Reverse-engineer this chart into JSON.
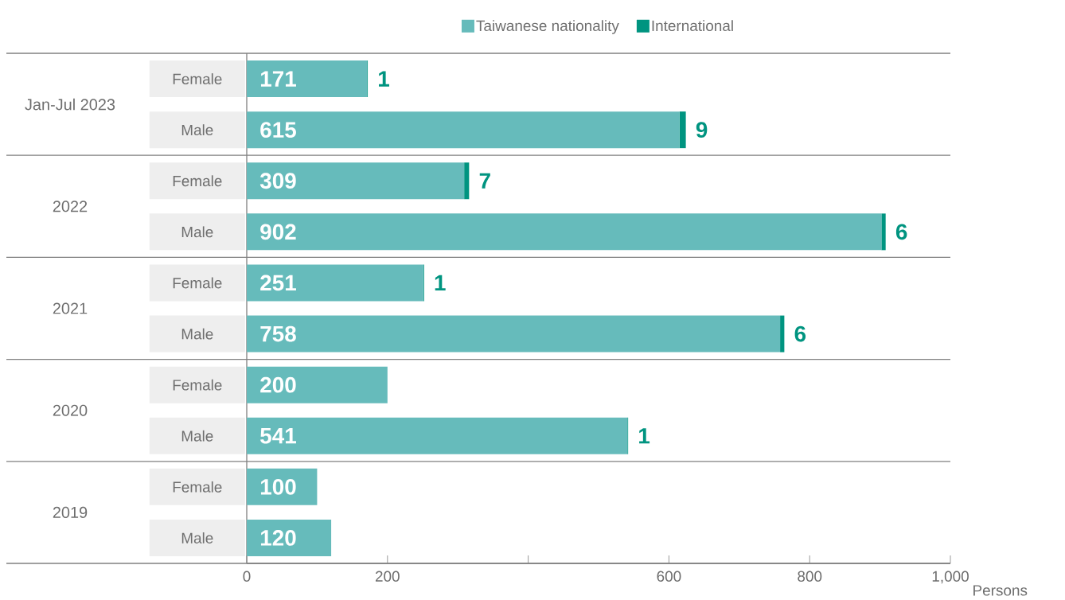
{
  "chart_data": {
    "type": "bar",
    "orientation": "horizontal",
    "stacked": true,
    "categories": [
      "Female",
      "Male",
      "Female",
      "Male",
      "Female",
      "Male",
      "Female",
      "Male",
      "Female",
      "Male"
    ],
    "annotations": [
      "Jan-Jul 2023",
      "2022",
      "2021",
      "2020",
      "2019"
    ],
    "series": [
      {
        "name": "Taiwanese nationality",
        "color": "#66bbbb",
        "values": [
          171,
          615,
          309,
          902,
          251,
          758,
          200,
          541,
          100,
          120
        ]
      },
      {
        "name": "International",
        "color": "#009480",
        "values": [
          1,
          9,
          7,
          6,
          1,
          6,
          null,
          1,
          null,
          null
        ]
      }
    ],
    "xlabel": "Persons",
    "xlim": [
      0,
      1000
    ],
    "xticks": [
      0,
      200,
      {
        "value": 400,
        "label": null
      },
      600,
      800,
      {
        "value": 1000,
        "label": "1,000"
      }
    ],
    "data_labels": true,
    "legend": "top"
  }
}
